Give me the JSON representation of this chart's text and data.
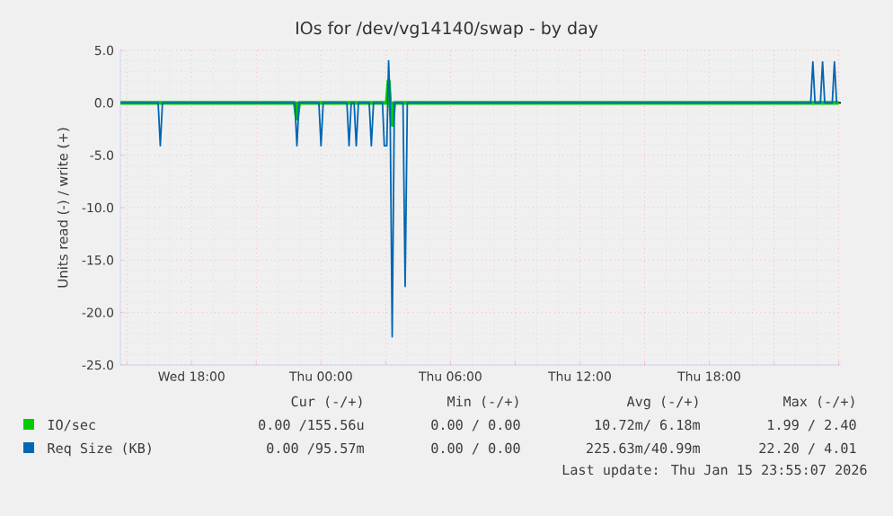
{
  "chart_data": {
    "type": "line",
    "title": "IOs for /dev/vg14140/swap - by day",
    "ylabel": "Units read (-) / write (+)",
    "xlim": [
      "2026-01-14T14:42",
      "2026-01-16T00:06"
    ],
    "xticks": [
      {
        "value": "2026-01-14T15:00",
        "label": null
      },
      {
        "value": "2026-01-14T18:00",
        "label": "Wed 18:00"
      },
      {
        "value": "2026-01-14T21:00",
        "label": null
      },
      {
        "value": "2026-01-15T00:00",
        "label": "Thu 00:00"
      },
      {
        "value": "2026-01-15T03:00",
        "label": null
      },
      {
        "value": "2026-01-15T06:00",
        "label": "Thu 06:00"
      },
      {
        "value": "2026-01-15T09:00",
        "label": null
      },
      {
        "value": "2026-01-15T12:00",
        "label": "Thu 12:00"
      },
      {
        "value": "2026-01-15T15:00",
        "label": null
      },
      {
        "value": "2026-01-15T18:00",
        "label": "Thu 18:00"
      },
      {
        "value": "2026-01-15T21:00",
        "label": null
      },
      {
        "value": "2026-01-16T00:00",
        "label": null
      }
    ],
    "ylim": [
      -25,
      5
    ],
    "yticks": [
      {
        "value": 5,
        "label": "5.0"
      },
      {
        "value": 0,
        "label": "0.0"
      },
      {
        "value": -5,
        "label": "-5.0"
      },
      {
        "value": -10,
        "label": "-10.0"
      },
      {
        "value": -15,
        "label": "-15.0"
      },
      {
        "value": -20,
        "label": "-20.0"
      },
      {
        "value": -25,
        "label": "-25.0"
      }
    ],
    "grid": true,
    "legend": "bottom",
    "marker": "none",
    "line_style": "solid",
    "ref_lines": [
      {
        "axis": "y",
        "value": 0,
        "color": "#000000"
      }
    ],
    "series": [
      {
        "name": "IO/sec",
        "color": "#00cc00",
        "x": [
          "2026-01-14T14:42",
          "2026-01-14T22:47",
          "2026-01-14T22:53",
          "2026-01-14T22:59",
          "2026-01-15T02:54",
          "2026-01-15T03:03",
          "2026-01-15T03:08",
          "2026-01-15T03:12",
          "2026-01-15T03:18",
          "2026-01-15T03:24",
          "2026-01-16T00:00"
        ],
        "values": [
          0,
          0,
          -1.5,
          0,
          0,
          0,
          2.1,
          0,
          -2.1,
          0,
          0
        ]
      },
      {
        "name": "Req Size (KB)",
        "color": "#0066b3",
        "x": [
          "2026-01-14T14:42",
          "2026-01-14T16:27",
          "2026-01-14T16:33",
          "2026-01-14T16:39",
          "2026-01-14T22:47",
          "2026-01-14T22:53",
          "2026-01-14T22:59",
          "2026-01-14T23:54",
          "2026-01-15T00:00",
          "2026-01-15T00:06",
          "2026-01-15T01:12",
          "2026-01-15T01:18",
          "2026-01-15T01:24",
          "2026-01-15T01:32",
          "2026-01-15T01:38",
          "2026-01-15T01:44",
          "2026-01-15T02:14",
          "2026-01-15T02:20",
          "2026-01-15T02:26",
          "2026-01-15T02:51",
          "2026-01-15T02:56",
          "2026-01-15T03:03",
          "2026-01-15T03:08",
          "2026-01-15T03:12",
          "2026-01-15T03:18",
          "2026-01-15T03:24",
          "2026-01-15T03:48",
          "2026-01-15T03:54",
          "2026-01-15T04:00",
          "2026-01-15T22:42",
          "2026-01-15T22:48",
          "2026-01-15T22:54",
          "2026-01-15T23:09",
          "2026-01-15T23:15",
          "2026-01-15T23:21",
          "2026-01-15T23:42",
          "2026-01-15T23:48",
          "2026-01-15T23:54"
        ],
        "values": [
          0,
          0,
          -4.1,
          0,
          0,
          -4.1,
          0,
          0,
          -4.1,
          0,
          0,
          -4.1,
          0,
          0,
          -4.1,
          0,
          0,
          -4.1,
          0,
          0,
          -4.1,
          -4.1,
          4.0,
          0,
          -22.3,
          0,
          0,
          -17.5,
          0,
          0,
          3.9,
          0,
          0,
          3.9,
          0,
          0,
          3.9,
          0
        ]
      }
    ],
    "annotations": [
      "Cur (-/+)",
      "Min (-/+)",
      "Avg (-/+)",
      "Max (-/+)",
      "0.00 /155.56u",
      "0.00 / 0.00",
      "10.72m/ 6.18m",
      "1.99 / 2.40",
      "0.00 /95.57m",
      "0.00 / 0.00",
      "225.63m/40.99m",
      "22.20 / 4.01",
      "Last update: Thu Jan 15 23:55:07 2026"
    ]
  }
}
